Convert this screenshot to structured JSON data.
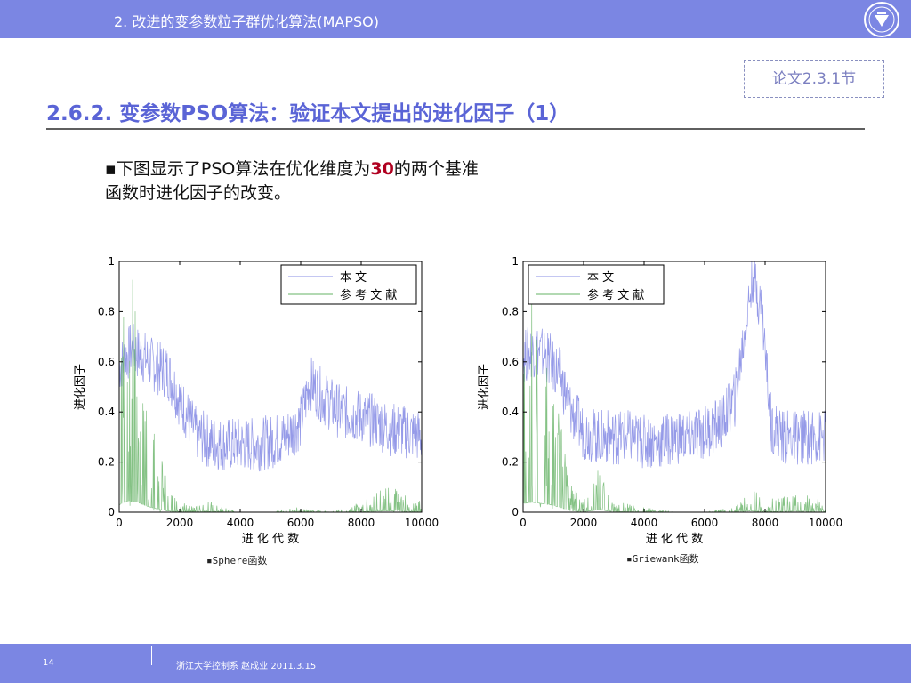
{
  "header": {
    "section_title": "2. 改进的变参数粒子群优化算法(MAPSO)"
  },
  "reference_box": "论文2.3.1节",
  "slide_heading": "2.6.2. 变参数PSO算法：验证本文提出的进化因子（1）",
  "body": {
    "bullet": "▪",
    "line1_before": "下图显示了PSO算法在优化维度为",
    "line1_highlight": "30",
    "line1_after": "的两个基准",
    "line2": "函数时进化因子的改变。"
  },
  "chart_data": [
    {
      "type": "line",
      "caption": "▪Sphere函数",
      "xlabel": "进 化 代 数",
      "ylabel": "进化因子",
      "xlim": [
        0,
        10000
      ],
      "ylim": [
        0,
        1
      ],
      "xticks": [
        "0",
        "2000",
        "4000",
        "6000",
        "8000",
        "10000"
      ],
      "yticks": [
        "0",
        "0.2",
        "0.4",
        "0.6",
        "0.8",
        "1"
      ],
      "legend_position": "top-right",
      "series": [
        {
          "name": "本 文",
          "color": "#8a8fe6",
          "x": [
            0,
            400,
            800,
            1200,
            1600,
            2000,
            2500,
            3000,
            3500,
            4000,
            4500,
            5000,
            5500,
            6000,
            6300,
            6800,
            7300,
            8000,
            8500,
            9000,
            9500,
            10000
          ],
          "values": [
            0.58,
            0.65,
            0.62,
            0.58,
            0.56,
            0.45,
            0.32,
            0.28,
            0.27,
            0.27,
            0.27,
            0.28,
            0.3,
            0.36,
            0.52,
            0.45,
            0.4,
            0.38,
            0.36,
            0.33,
            0.32,
            0.3
          ]
        },
        {
          "name": "参 考 文 献",
          "color": "#66b366",
          "x": [
            0,
            300,
            600,
            900,
            1200,
            1600,
            2000,
            2500,
            3000,
            4000,
            5000,
            6000,
            7000,
            7500,
            8000,
            8500,
            9000,
            9500,
            10000
          ],
          "values": [
            0.3,
            0.45,
            0.4,
            0.25,
            0.15,
            0.05,
            0.02,
            0.01,
            0.02,
            0.0,
            0.0,
            0.01,
            0.0,
            0.01,
            0.02,
            0.04,
            0.05,
            0.03,
            0.02
          ]
        }
      ]
    },
    {
      "type": "line",
      "caption": "▪Griewank函数",
      "xlabel": "进 化 代 数",
      "ylabel": "进化因子",
      "xlim": [
        0,
        10000
      ],
      "ylim": [
        0,
        1
      ],
      "xticks": [
        "0",
        "2000",
        "4000",
        "6000",
        "8000",
        "10000"
      ],
      "yticks": [
        "0",
        "0.2",
        "0.4",
        "0.6",
        "0.8",
        "1"
      ],
      "legend_position": "top-left",
      "series": [
        {
          "name": "本 文",
          "color": "#8a8fe6",
          "x": [
            0,
            400,
            800,
            1200,
            1600,
            2000,
            2500,
            3000,
            3500,
            4000,
            4500,
            5000,
            5500,
            6000,
            6500,
            7000,
            7300,
            7600,
            7900,
            8200,
            8600,
            9000,
            9500,
            10000
          ],
          "values": [
            0.62,
            0.65,
            0.62,
            0.55,
            0.4,
            0.32,
            0.3,
            0.3,
            0.3,
            0.28,
            0.28,
            0.3,
            0.3,
            0.32,
            0.35,
            0.45,
            0.7,
            0.95,
            0.8,
            0.35,
            0.3,
            0.3,
            0.3,
            0.3
          ]
        },
        {
          "name": "参 考 文 献",
          "color": "#66b366",
          "x": [
            0,
            300,
            600,
            900,
            1200,
            1600,
            2000,
            2500,
            3000,
            4000,
            5000,
            6000,
            7000,
            7500,
            8000,
            8500,
            9000,
            9500,
            10000
          ],
          "values": [
            0.35,
            0.4,
            0.35,
            0.3,
            0.2,
            0.05,
            0.02,
            0.1,
            0.02,
            0.01,
            0.0,
            0.0,
            0.01,
            0.05,
            0.02,
            0.03,
            0.04,
            0.03,
            0.02
          ]
        }
      ]
    }
  ],
  "footer": {
    "page_number": "14",
    "info": "浙江大学控制系 赵成业 2011.3.15"
  },
  "colors": {
    "bar": "#7b86e3",
    "heading": "#5a64d6",
    "highlight": "#b00020"
  }
}
